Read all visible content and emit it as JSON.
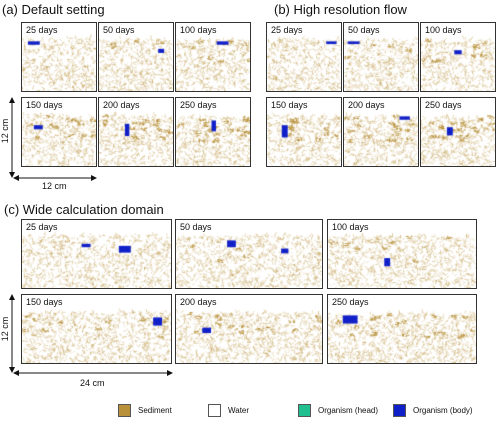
{
  "sections": {
    "a": {
      "title": "(a) Default setting",
      "labels": [
        "25 days",
        "50 days",
        "100 days",
        "150 days",
        "200 days",
        "250 days"
      ]
    },
    "b": {
      "title": "(b) High resolution flow",
      "labels": [
        "25 days",
        "50 days",
        "100 days",
        "150 days",
        "200 days",
        "250 days"
      ]
    },
    "c": {
      "title": "(c) Wide calculation domain",
      "labels": [
        "25 days",
        "50 days",
        "100 days",
        "150 days",
        "200 days",
        "250 days"
      ]
    }
  },
  "dimensions": {
    "a_height": "12 cm",
    "a_width": "12 cm",
    "c_height": "12 cm",
    "c_width": "24 cm"
  },
  "legend": [
    {
      "label": "Sediment",
      "color": "#b8913a"
    },
    {
      "label": "Water",
      "color": "#ffffff"
    },
    {
      "label": "Organism (head)",
      "color": "#1fbf8f"
    },
    {
      "label": "Organism (body)",
      "color": "#1020c8"
    }
  ],
  "colors": {
    "sediment": "#b8913a",
    "organism_body": "#1020c8"
  }
}
